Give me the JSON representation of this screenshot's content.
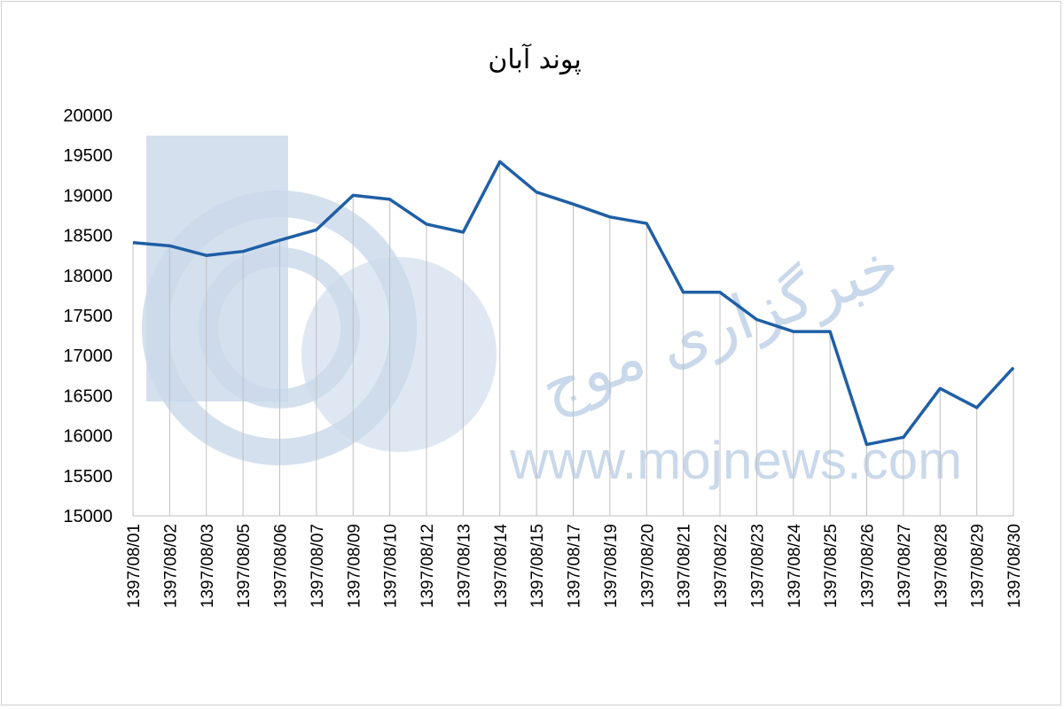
{
  "chart_data": {
    "type": "line",
    "title": "پوند آبان",
    "xlabel": "",
    "ylabel": "",
    "ylim": [
      15000,
      20000
    ],
    "yticks": [
      15000,
      15500,
      16000,
      16500,
      17000,
      17500,
      18000,
      18500,
      19000,
      19500,
      20000
    ],
    "grid": "vertical",
    "legend": "none",
    "line_color": "#1f5fa5",
    "categories": [
      "1397/08/01",
      "1397/08/02",
      "1397/08/03",
      "1397/08/05",
      "1397/08/06",
      "1397/08/07",
      "1397/08/09",
      "1397/08/10",
      "1397/08/12",
      "1397/08/13",
      "1397/08/14",
      "1397/08/15",
      "1397/08/17",
      "1397/08/19",
      "1397/08/20",
      "1397/08/21",
      "1397/08/22",
      "1397/08/23",
      "1397/08/24",
      "1397/08/25",
      "1397/08/26",
      "1397/08/27",
      "1397/08/28",
      "1397/08/29",
      "1397/08/30"
    ],
    "values": [
      18410,
      18370,
      18250,
      18300,
      18440,
      18570,
      19000,
      18950,
      18640,
      18540,
      19420,
      19040,
      18890,
      18730,
      18650,
      17790,
      17790,
      17450,
      17300,
      17300,
      15890,
      15980,
      16590,
      16350,
      16850
    ]
  },
  "watermark": {
    "text": "www.mojnews.com",
    "script": "خبرگزاری موج",
    "color": "#c9d8ea"
  }
}
